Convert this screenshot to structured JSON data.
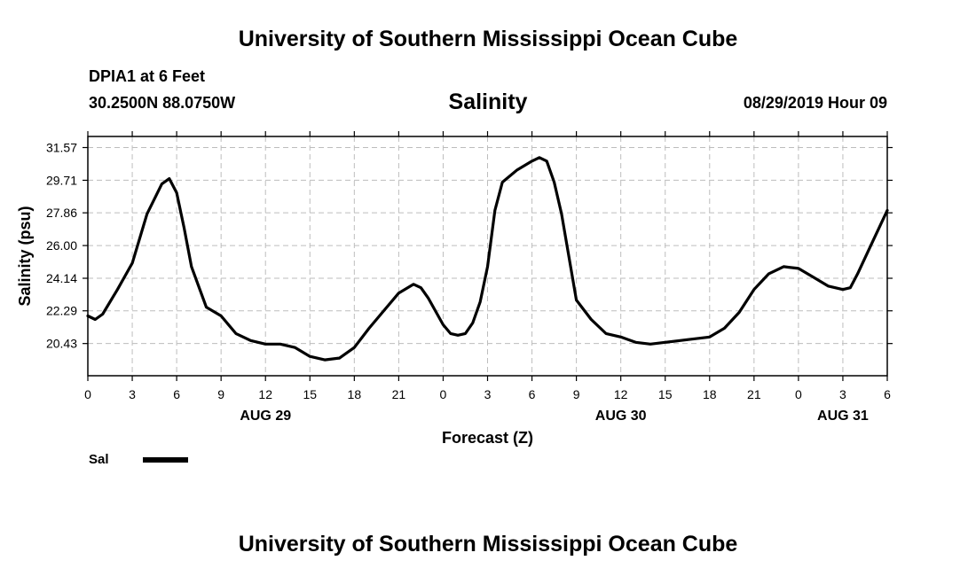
{
  "header": {
    "top_title": "University of Southern Mississippi Ocean Cube",
    "station": "DPIA1 at 6 Feet",
    "coords": "30.2500N 88.0750W",
    "timestamp": "08/29/2019 Hour 09"
  },
  "footer": {
    "bottom_title": "University of Southern Mississippi Ocean Cube"
  },
  "legend": {
    "label": "Sal",
    "color": "#000000"
  },
  "chart_data": {
    "type": "line",
    "title": "Salinity",
    "xlabel": "Forecast (Z)",
    "ylabel": "Salinity (psu)",
    "ylim": [
      18.6,
      32.2
    ],
    "xlim": [
      0,
      54
    ],
    "grid": true,
    "yticks": [
      20.43,
      22.29,
      24.14,
      26.0,
      27.86,
      29.71,
      31.57
    ],
    "yticklabels": [
      "20.43",
      "22.29",
      "24.14",
      "26.00",
      "27.86",
      "29.71",
      "31.57"
    ],
    "xticks": [
      0,
      3,
      6,
      9,
      12,
      15,
      18,
      21,
      24,
      27,
      30,
      33,
      36,
      39,
      42,
      45,
      48,
      51,
      54
    ],
    "xticklabels": [
      "0",
      "3",
      "6",
      "9",
      "12",
      "15",
      "18",
      "21",
      "0",
      "3",
      "6",
      "9",
      "12",
      "15",
      "18",
      "21",
      "0",
      "3",
      "6"
    ],
    "date_labels": [
      {
        "x": 12,
        "label": "AUG 29"
      },
      {
        "x": 36,
        "label": "AUG 30"
      },
      {
        "x": 51,
        "label": "AUG 31"
      }
    ],
    "series": [
      {
        "name": "Sal",
        "x": [
          0,
          0.5,
          1,
          2,
          3,
          4,
          5,
          5.5,
          6,
          6.5,
          7,
          8,
          9,
          10,
          11,
          12,
          13,
          14,
          15,
          16,
          17,
          18,
          19,
          20,
          21,
          22,
          22.5,
          23,
          24,
          24.5,
          25,
          25.5,
          26,
          26.5,
          27,
          27.5,
          28,
          29,
          30,
          30.5,
          31,
          31.5,
          32,
          33,
          34,
          35,
          36,
          37,
          38,
          39,
          40,
          41,
          42,
          43,
          44,
          45,
          46,
          47,
          48,
          49,
          50,
          51,
          51.5,
          52,
          53,
          54
        ],
        "y": [
          22.0,
          21.8,
          22.1,
          23.5,
          25.0,
          27.8,
          29.5,
          29.8,
          29.0,
          27.0,
          24.8,
          22.5,
          22.0,
          21.0,
          20.6,
          20.4,
          20.4,
          20.2,
          19.7,
          19.5,
          19.6,
          20.2,
          21.3,
          22.3,
          23.3,
          23.8,
          23.6,
          23.0,
          21.5,
          21.0,
          20.9,
          21.0,
          21.6,
          22.8,
          24.8,
          28.0,
          29.6,
          30.3,
          30.8,
          31.0,
          30.8,
          29.6,
          27.8,
          22.9,
          21.8,
          21.0,
          20.8,
          20.5,
          20.4,
          20.5,
          20.6,
          20.7,
          20.8,
          21.3,
          22.2,
          23.5,
          24.4,
          24.8,
          24.7,
          24.2,
          23.7,
          23.5,
          23.6,
          24.4,
          26.2,
          28.0
        ]
      }
    ]
  }
}
